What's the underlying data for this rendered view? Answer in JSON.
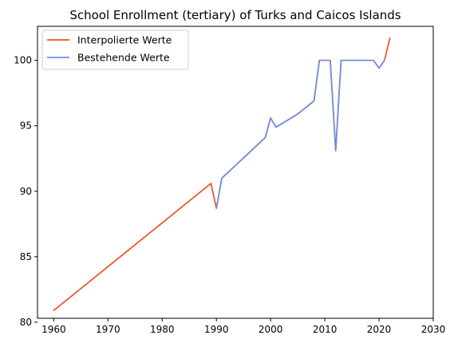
{
  "chart_data": {
    "type": "line",
    "title": "School Enrollment (tertiary) of Turks and Caicos Islands",
    "xlabel": "",
    "ylabel": "",
    "xlim": [
      1957,
      2030
    ],
    "ylim": [
      80.3,
      102.6
    ],
    "xticks": [
      1960,
      1970,
      1980,
      1990,
      2000,
      2010,
      2020,
      2030
    ],
    "yticks": [
      80,
      85,
      90,
      95,
      100
    ],
    "grid": false,
    "legend_position": "top-left",
    "series": [
      {
        "name": "Interpolierte Werte",
        "color": "#f0501e",
        "x": [
          1960,
          1989,
          1990,
          1991,
          1999,
          2000,
          2001,
          2005,
          2008,
          2009,
          2011,
          2012,
          2013,
          2019,
          2020,
          2021,
          2022
        ],
        "y": [
          80.9,
          90.6,
          88.7,
          91.0,
          94.1,
          95.6,
          94.9,
          95.9,
          96.9,
          100.0,
          100.0,
          93.1,
          100.0,
          100.0,
          99.4,
          100.0,
          101.7
        ]
      },
      {
        "name": "Bestehende Werte",
        "color": "#6e8fe6",
        "x": [
          1990,
          1991,
          1999,
          2000,
          2001,
          2005,
          2008,
          2009,
          2011,
          2012,
          2013,
          2019,
          2020,
          2021
        ],
        "y": [
          88.7,
          91.0,
          94.1,
          95.6,
          94.9,
          95.9,
          96.9,
          100.0,
          100.0,
          93.1,
          100.0,
          100.0,
          99.4,
          100.0
        ]
      }
    ]
  }
}
